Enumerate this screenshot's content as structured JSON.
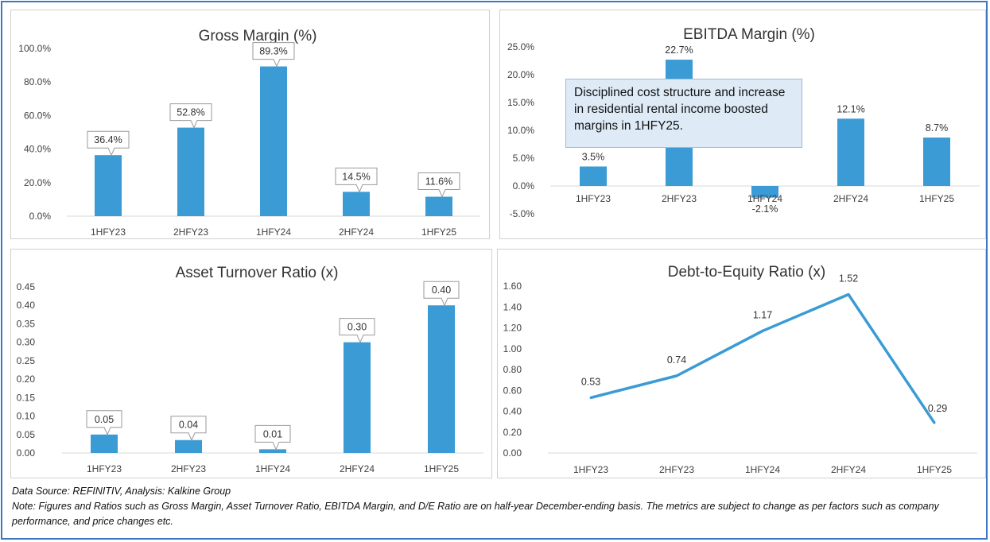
{
  "colors": {
    "bar": "#3a9bd5",
    "line": "#3a9bd5",
    "grid": "#d9d9d9",
    "text": "#404040",
    "title": "#333333"
  },
  "chart_data": [
    {
      "id": "gross",
      "type": "bar",
      "title": "Gross Margin (%)",
      "categories": [
        "1HFY23",
        "2HFY23",
        "1HFY24",
        "2HFY24",
        "1HFY25"
      ],
      "values": [
        36.4,
        52.8,
        89.3,
        14.5,
        11.6
      ],
      "value_labels": [
        "36.4%",
        "52.8%",
        "89.3%",
        "14.5%",
        "11.6%"
      ],
      "yticks": [
        "100.0%",
        "80.0%",
        "60.0%",
        "40.0%",
        "20.0%",
        "0.0%"
      ],
      "ylim": [
        0,
        100
      ],
      "grid": false
    },
    {
      "id": "ebitda",
      "type": "bar",
      "title": "EBITDA Margin (%)",
      "categories": [
        "1HFY23",
        "2HFY23",
        "1HFY24",
        "2HFY24",
        "1HFY25"
      ],
      "values": [
        3.5,
        22.7,
        -2.1,
        12.1,
        8.7
      ],
      "value_labels": [
        "3.5%",
        "22.7%",
        "-2.1%",
        "12.1%",
        "8.7%"
      ],
      "yticks": [
        "25.0%",
        "20.0%",
        "15.0%",
        "10.0%",
        "5.0%",
        "0.0%",
        "-5.0%"
      ],
      "ylim": [
        -5,
        25
      ],
      "grid": false,
      "annotation": "Disciplined cost structure and increase in residential rental income boosted margins in 1HFY25."
    },
    {
      "id": "turnover",
      "type": "bar",
      "title": "Asset Turnover Ratio (x)",
      "categories": [
        "1HFY23",
        "2HFY23",
        "1HFY24",
        "2HFY24",
        "1HFY25"
      ],
      "values": [
        0.05,
        0.035,
        0.01,
        0.3,
        0.4
      ],
      "value_labels": [
        "0.05",
        "0.04",
        "0.01",
        "0.30",
        "0.40"
      ],
      "yticks": [
        "0.45",
        "0.40",
        "0.35",
        "0.30",
        "0.25",
        "0.20",
        "0.15",
        "0.10",
        "0.05",
        "0.00"
      ],
      "ylim": [
        0,
        0.45
      ],
      "grid": false
    },
    {
      "id": "de",
      "type": "line",
      "title": "Debt-to-Equity Ratio (x)",
      "categories": [
        "1HFY23",
        "2HFY23",
        "1HFY24",
        "2HFY24",
        "1HFY25"
      ],
      "values": [
        0.53,
        0.74,
        1.17,
        1.52,
        0.29
      ],
      "value_labels": [
        "0.53",
        "0.74",
        "1.17",
        "1.52",
        "0.29"
      ],
      "yticks": [
        "1.60",
        "1.40",
        "1.20",
        "1.00",
        "0.80",
        "0.60",
        "0.40",
        "0.20",
        "0.00"
      ],
      "ylim": [
        0,
        1.6
      ],
      "grid": false
    }
  ],
  "footer": {
    "source": "Data Source: REFINITIV, Analysis: Kalkine Group",
    "note": "Note: Figures and Ratios such as Gross Margin, Asset Turnover Ratio, EBITDA Margin, and D/E Ratio are on half-year December-ending basis. The metrics are subject to change as per factors such as company performance, and price changes etc."
  }
}
